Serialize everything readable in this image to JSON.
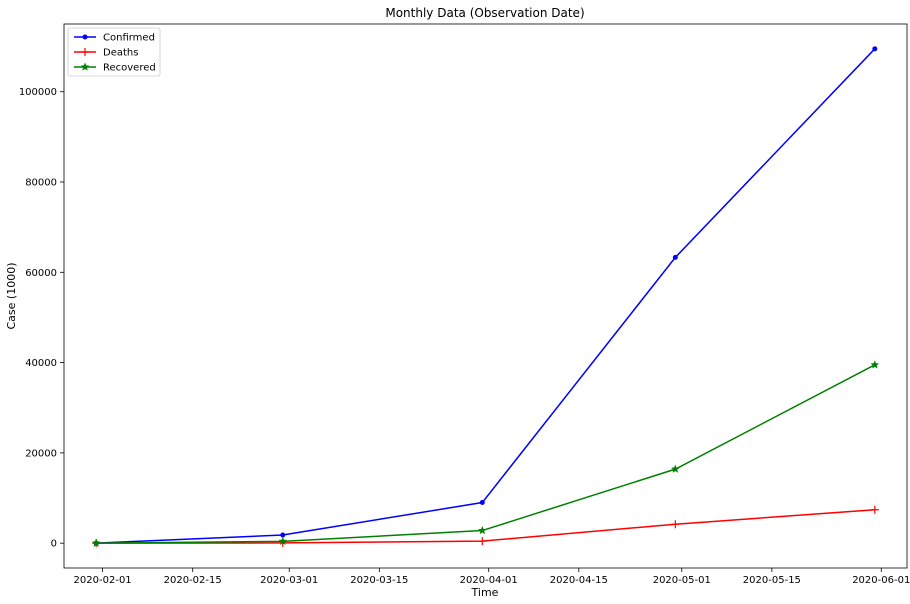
{
  "chart_data": {
    "type": "line",
    "title": "Monthly Data (Observation Date)",
    "xlabel": "Time",
    "ylabel": "Case (1000)",
    "x": [
      "2020-01-31",
      "2020-02-29",
      "2020-03-31",
      "2020-04-30",
      "2020-05-31"
    ],
    "xlim": [
      "2020-01-26",
      "2020-06-05"
    ],
    "ylim": [
      -5500,
      115000
    ],
    "x_ticks": [
      "2020-02-01",
      "2020-02-15",
      "2020-03-01",
      "2020-03-15",
      "2020-04-01",
      "2020-04-15",
      "2020-05-01",
      "2020-05-15",
      "2020-06-01"
    ],
    "y_ticks": [
      0,
      20000,
      40000,
      60000,
      80000,
      100000
    ],
    "grid": false,
    "legend_position": "top-left",
    "series": [
      {
        "name": "Confirmed",
        "color": "#0000ff",
        "marker": "point",
        "values": [
          10,
          1800,
          9000,
          63300,
          109500
        ]
      },
      {
        "name": "Deaths",
        "color": "#ff0000",
        "marker": "plus",
        "values": [
          0,
          60,
          450,
          4200,
          7400
        ]
      },
      {
        "name": "Recovered",
        "color": "#008000",
        "marker": "star",
        "values": [
          0,
          400,
          2800,
          16400,
          39500
        ]
      }
    ]
  }
}
